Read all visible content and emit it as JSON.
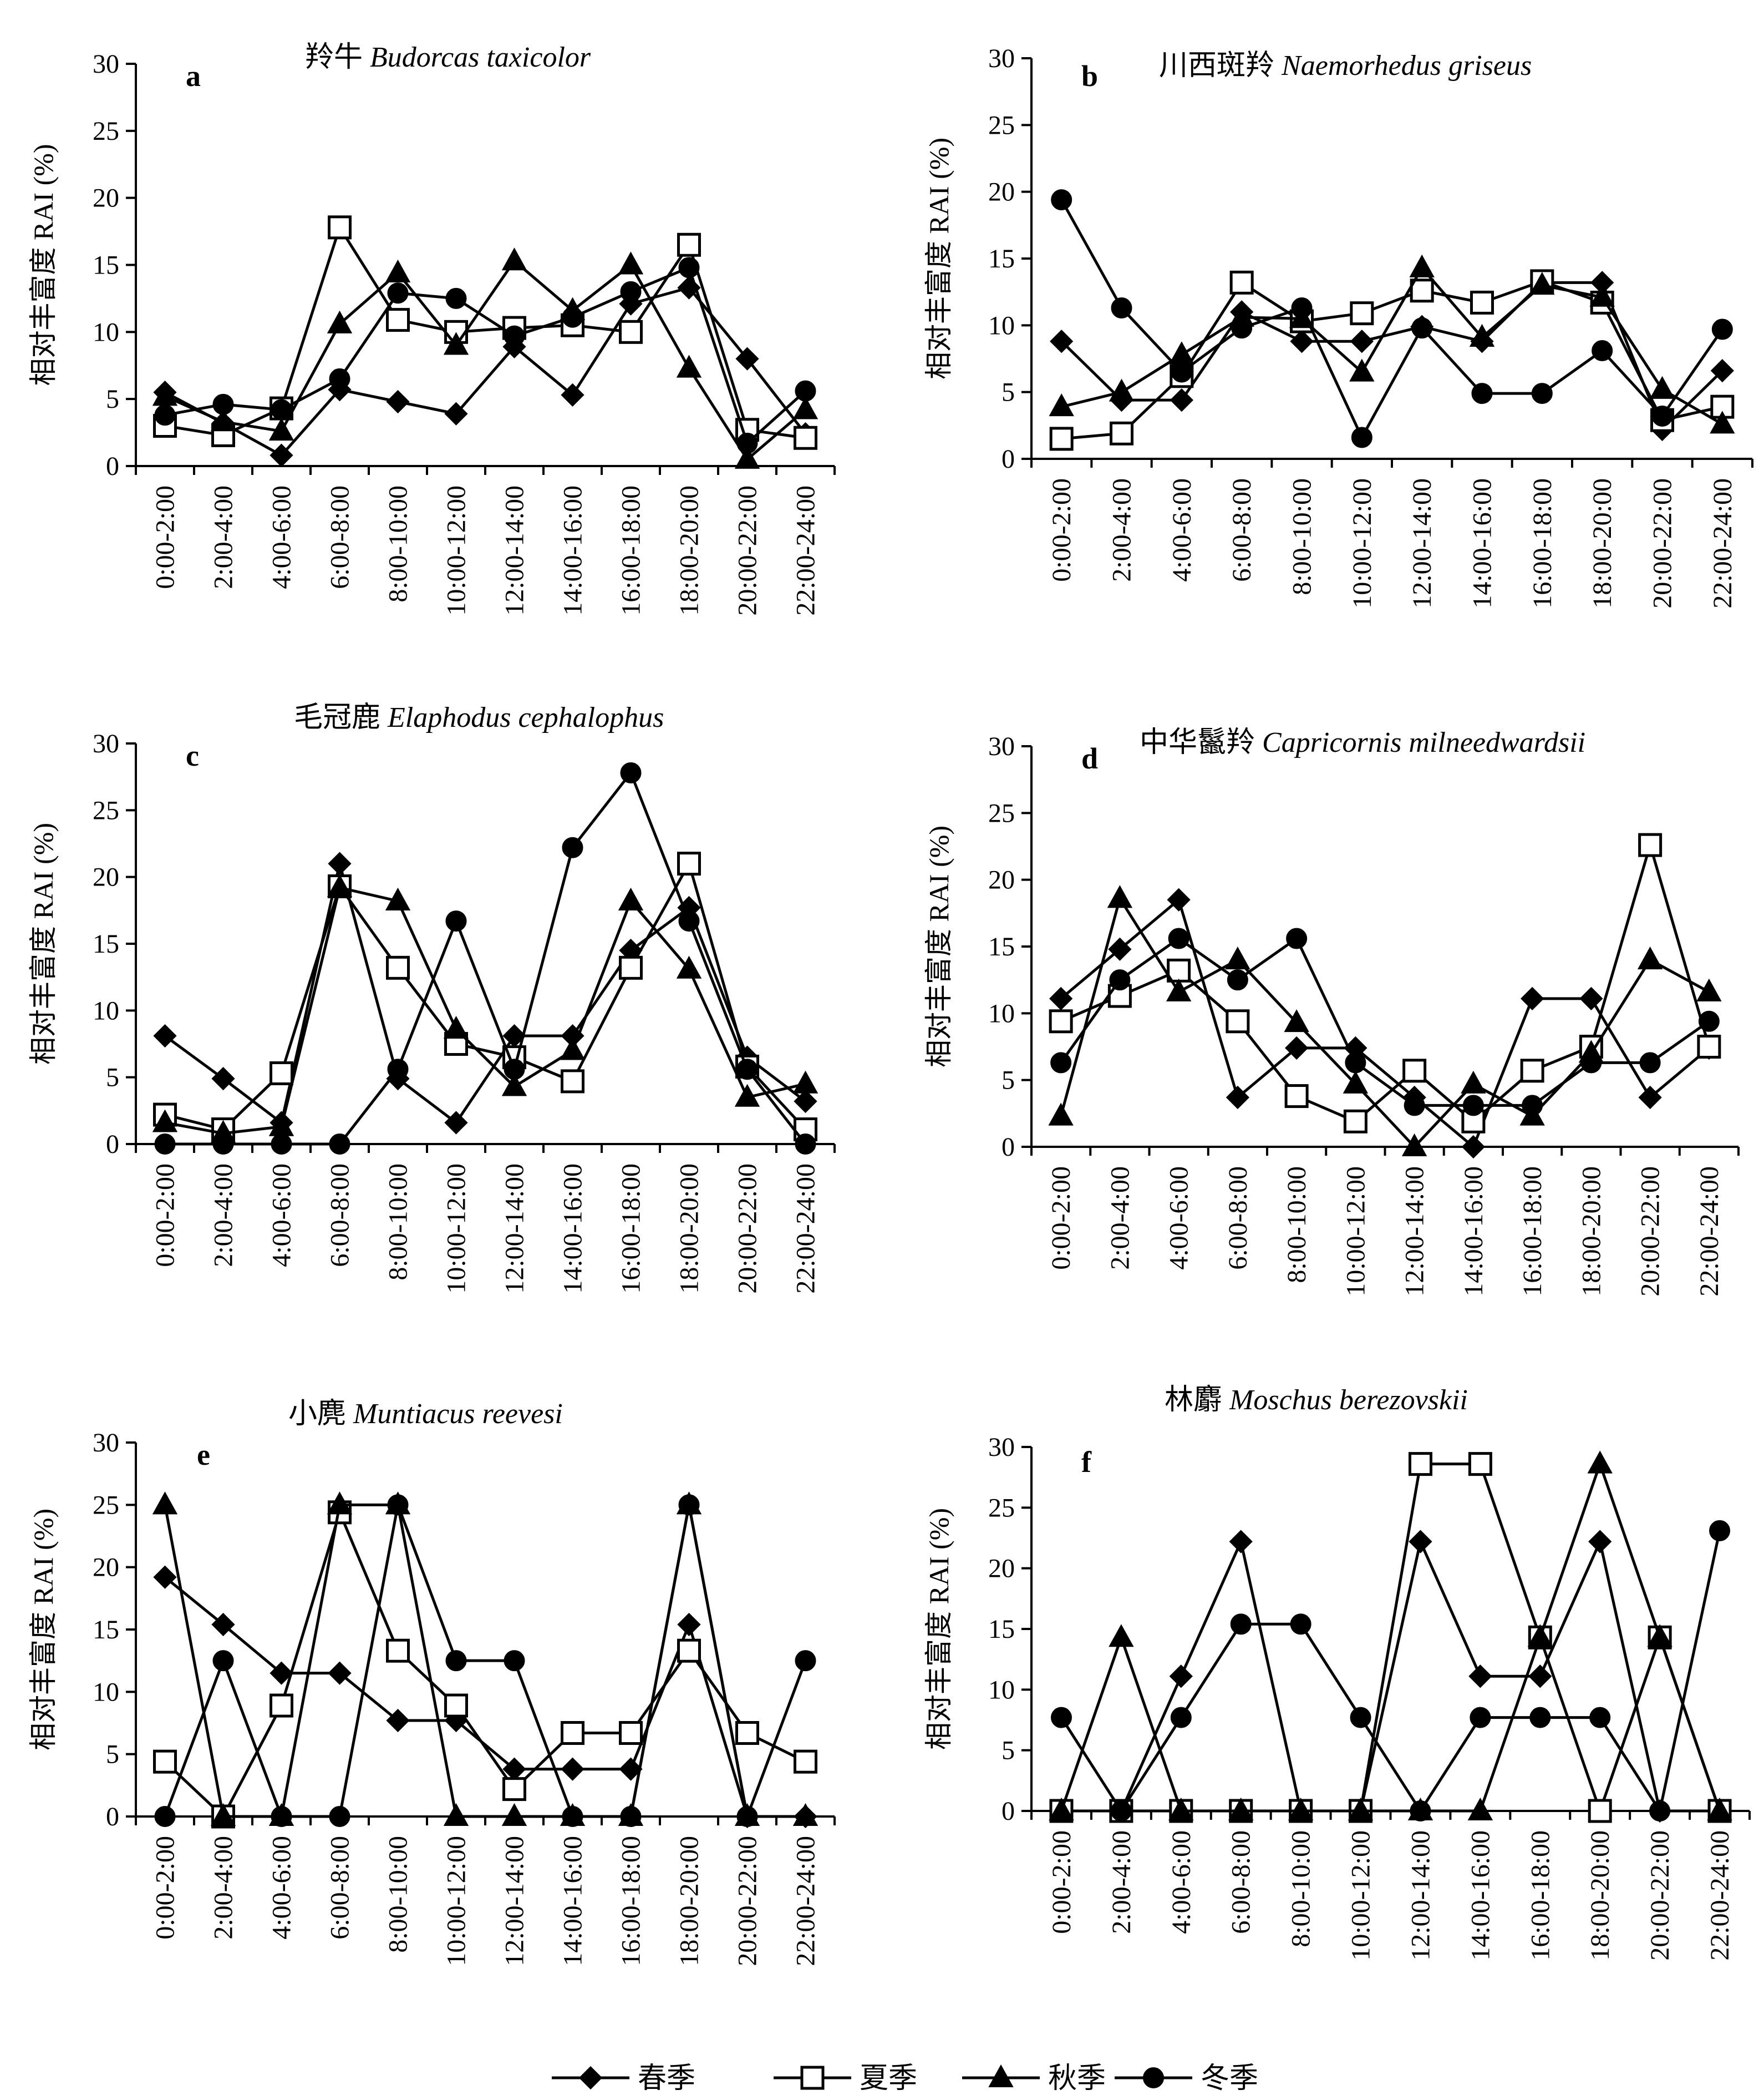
{
  "legend": {
    "items": [
      {
        "label": "春季",
        "marker": "diamond",
        "fill": "#000000"
      },
      {
        "label": "夏季",
        "marker": "square",
        "fill": "#ffffff"
      },
      {
        "label": "秋季",
        "marker": "triangle",
        "fill": "#000000"
      },
      {
        "label": "冬季",
        "marker": "circle",
        "fill": "#000000"
      }
    ]
  },
  "colors": {
    "line": "#000000",
    "background": "#ffffff"
  },
  "chart_data": [
    {
      "type": "line",
      "panel": "a",
      "title_cn": "羚牛",
      "title_sci": "Budorcas taxicolor",
      "ylabel": "相对丰富度 RAI (%)",
      "xlabel": "",
      "ylim": [
        0,
        30
      ],
      "yticks": [
        0,
        5,
        10,
        15,
        20,
        25,
        30
      ],
      "grid": false,
      "categories": [
        "0:00-2:00",
        "2:00-4:00",
        "4:00-6:00",
        "6:00-8:00",
        "8:00-10:00",
        "10:00-12:00",
        "12:00-14:00",
        "14:00-16:00",
        "16:00-18:00",
        "18:00-20:00",
        "20:00-22:00",
        "22:00-24:00"
      ],
      "series": [
        {
          "name": "春季",
          "values": [
            5.5,
            3.2,
            0.8,
            5.7,
            4.8,
            3.9,
            8.9,
            5.3,
            12.1,
            13.3,
            8.0,
            2.4
          ]
        },
        {
          "name": "夏季",
          "values": [
            3.0,
            2.3,
            4.3,
            17.8,
            10.9,
            10.0,
            10.3,
            10.5,
            10.0,
            16.5,
            2.7,
            2.1
          ]
        },
        {
          "name": "秋季",
          "values": [
            5.2,
            3.3,
            2.6,
            10.6,
            14.4,
            9.0,
            15.3,
            11.6,
            15.0,
            7.3,
            0.5,
            4.2
          ]
        },
        {
          "name": "冬季",
          "values": [
            3.8,
            4.6,
            4.2,
            6.5,
            12.9,
            12.5,
            9.7,
            11.1,
            13.0,
            14.8,
            1.7,
            5.6
          ]
        }
      ]
    },
    {
      "type": "line",
      "panel": "b",
      "title_cn": "川西斑羚",
      "title_sci": "Naemorhedus griseus",
      "ylabel": "相对丰富度 RAI (%)",
      "xlabel": "",
      "ylim": [
        0,
        30
      ],
      "yticks": [
        0,
        5,
        10,
        15,
        20,
        25,
        30
      ],
      "grid": false,
      "categories": [
        "0:00-2:00",
        "2:00-4:00",
        "4:00-6:00",
        "6:00-8:00",
        "8:00-10:00",
        "10:00-12:00",
        "12:00-14:00",
        "14:00-16:00",
        "16:00-18:00",
        "18:00-20:00",
        "20:00-22:00",
        "22:00-24:00"
      ],
      "series": [
        {
          "name": "春季",
          "values": [
            8.8,
            4.4,
            4.4,
            11.0,
            8.8,
            8.8,
            9.9,
            8.8,
            13.2,
            13.2,
            2.2,
            6.6
          ]
        },
        {
          "name": "夏季",
          "values": [
            1.5,
            1.9,
            6.2,
            13.2,
            10.3,
            10.9,
            12.6,
            11.7,
            13.3,
            11.7,
            2.9,
            3.9
          ]
        },
        {
          "name": "秋季",
          "values": [
            3.9,
            5.0,
            7.8,
            10.6,
            10.5,
            6.5,
            14.3,
            9.1,
            13.0,
            12.1,
            5.2,
            2.6
          ]
        },
        {
          "name": "冬季",
          "values": [
            19.4,
            11.3,
            6.5,
            9.8,
            11.3,
            1.6,
            9.8,
            4.9,
            4.9,
            8.1,
            3.2,
            9.7
          ]
        }
      ]
    },
    {
      "type": "line",
      "panel": "c",
      "title_cn": "毛冠鹿",
      "title_sci": "Elaphodus cephalophus",
      "ylabel": "相对丰富度 RAI (%)",
      "xlabel": "",
      "ylim": [
        0,
        30
      ],
      "yticks": [
        0,
        5,
        10,
        15,
        20,
        25,
        30
      ],
      "grid": false,
      "categories": [
        "0:00-2:00",
        "2:00-4:00",
        "4:00-6:00",
        "6:00-8:00",
        "8:00-10:00",
        "10:00-12:00",
        "12:00-14:00",
        "14:00-16:00",
        "16:00-18:00",
        "18:00-20:00",
        "20:00-22:00",
        "22:00-24:00"
      ],
      "series": [
        {
          "name": "春季",
          "values": [
            8.1,
            4.9,
            1.6,
            21.0,
            4.9,
            1.6,
            8.1,
            8.1,
            14.5,
            17.7,
            6.5,
            3.2
          ]
        },
        {
          "name": "夏季",
          "values": [
            2.2,
            1.1,
            5.3,
            19.3,
            13.2,
            7.5,
            6.5,
            4.7,
            13.2,
            21.0,
            5.8,
            1.1
          ]
        },
        {
          "name": "秋季",
          "values": [
            1.6,
            0.8,
            1.3,
            19.2,
            18.2,
            8.6,
            4.3,
            7.0,
            18.2,
            13.1,
            3.5,
            4.5
          ]
        },
        {
          "name": "冬季",
          "values": [
            0.0,
            0.0,
            0.0,
            0.0,
            5.6,
            16.7,
            5.6,
            22.2,
            27.8,
            16.7,
            5.6,
            0.0
          ]
        }
      ]
    },
    {
      "type": "line",
      "panel": "d",
      "title_cn": "中华鬣羚",
      "title_sci": "Capricornis milneedwardsii",
      "ylabel": "相对丰富度 RAI (%)",
      "xlabel": "",
      "ylim": [
        0,
        30
      ],
      "yticks": [
        0,
        5,
        10,
        15,
        20,
        25,
        30
      ],
      "grid": false,
      "categories": [
        "0:00-2:00",
        "2:00-4:00",
        "4:00-6:00",
        "6:00-8:00",
        "8:00-10:00",
        "10:00-12:00",
        "12:00-14:00",
        "14:00-16:00",
        "16:00-18:00",
        "18:00-20:00",
        "20:00-22:00",
        "22:00-24:00"
      ],
      "series": [
        {
          "name": "春季",
          "values": [
            11.1,
            14.8,
            18.5,
            3.7,
            7.4,
            7.4,
            3.7,
            0.0,
            11.1,
            11.1,
            3.7,
            7.4
          ]
        },
        {
          "name": "夏季",
          "values": [
            9.4,
            11.3,
            13.2,
            9.4,
            3.8,
            1.9,
            5.7,
            1.9,
            5.7,
            7.5,
            22.6,
            7.5
          ]
        },
        {
          "name": "秋季",
          "values": [
            2.3,
            18.6,
            11.6,
            14.0,
            9.3,
            4.7,
            0.0,
            4.7,
            2.3,
            7.0,
            14.0,
            11.6
          ]
        },
        {
          "name": "冬季",
          "values": [
            6.3,
            12.5,
            15.6,
            12.5,
            15.6,
            6.3,
            3.1,
            3.1,
            3.1,
            6.3,
            6.3,
            9.4
          ]
        }
      ]
    },
    {
      "type": "line",
      "panel": "e",
      "title_cn": "小麂",
      "title_sci": "Muntiacus reevesi",
      "ylabel": "相对丰富度 RAI (%)",
      "xlabel": "",
      "ylim": [
        0,
        30
      ],
      "yticks": [
        0,
        5,
        10,
        15,
        20,
        25,
        30
      ],
      "grid": false,
      "categories": [
        "0:00-2:00",
        "2:00-4:00",
        "4:00-6:00",
        "6:00-8:00",
        "8:00-10:00",
        "10:00-12:00",
        "12:00-14:00",
        "14:00-16:00",
        "16:00-18:00",
        "18:00-20:00",
        "20:00-22:00",
        "22:00-24:00"
      ],
      "series": [
        {
          "name": "春季",
          "values": [
            19.2,
            15.4,
            11.5,
            11.5,
            7.7,
            7.7,
            3.8,
            3.8,
            3.8,
            15.4,
            0.0,
            0.0
          ]
        },
        {
          "name": "夏季",
          "values": [
            4.4,
            0.0,
            8.9,
            24.4,
            13.3,
            8.9,
            2.2,
            6.7,
            6.7,
            13.3,
            6.7,
            4.4
          ]
        },
        {
          "name": "秋季",
          "values": [
            25.0,
            0.0,
            0.0,
            25.0,
            25.0,
            0.0,
            0.0,
            0.0,
            0.0,
            25.0,
            0.0,
            0.0
          ]
        },
        {
          "name": "冬季",
          "values": [
            0.0,
            12.5,
            0.0,
            0.0,
            25.0,
            12.5,
            12.5,
            0.0,
            0.0,
            25.0,
            0.0,
            12.5
          ]
        }
      ]
    },
    {
      "type": "line",
      "panel": "f",
      "title_cn": "林麝",
      "title_sci": "Moschus berezovskii",
      "ylabel": "相对丰富度 RAI (%)",
      "xlabel": "",
      "ylim": [
        0,
        30
      ],
      "yticks": [
        0,
        5,
        10,
        15,
        20,
        25,
        30
      ],
      "grid": false,
      "categories": [
        "0:00-2:00",
        "2:00-4:00",
        "4:00-6:00",
        "6:00-8:00",
        "8:00-10:00",
        "10:00-12:00",
        "12:00-14:00",
        "14:00-16:00",
        "16:00-18:00",
        "18:00-20:00",
        "20:00-22:00",
        "22:00-24:00"
      ],
      "series": [
        {
          "name": "春季",
          "values": [
            0.0,
            0.0,
            11.1,
            22.2,
            0.0,
            0.0,
            22.2,
            11.1,
            11.1,
            22.2,
            0.0,
            0.0
          ]
        },
        {
          "name": "夏季",
          "values": [
            0.0,
            0.0,
            0.0,
            0.0,
            0.0,
            0.0,
            28.6,
            28.6,
            14.3,
            0.0,
            14.3,
            0.0
          ]
        },
        {
          "name": "秋季",
          "values": [
            0.0,
            14.3,
            0.0,
            0.0,
            0.0,
            0.0,
            0.0,
            0.0,
            14.3,
            28.6,
            14.3,
            0.0
          ]
        },
        {
          "name": "冬季",
          "values": [
            7.7,
            0.0,
            7.7,
            15.4,
            15.4,
            7.7,
            0.0,
            7.7,
            7.7,
            7.7,
            0.0,
            23.1
          ]
        }
      ]
    }
  ]
}
